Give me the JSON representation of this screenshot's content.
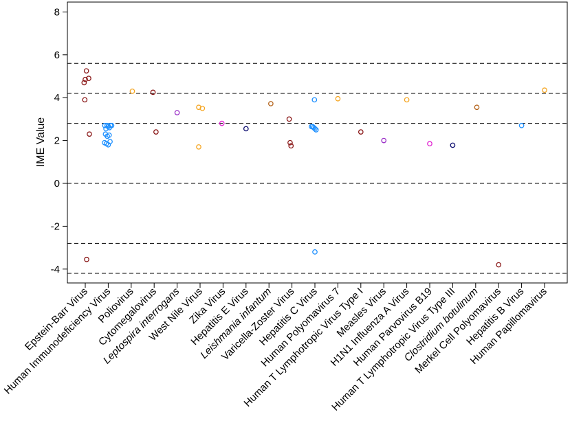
{
  "chart_data": {
    "type": "scatter",
    "ylabel": "IME Value",
    "xlabel": "",
    "ylim": [
      -4.7,
      8.5
    ],
    "yticks": [
      -4,
      -2,
      0,
      2,
      4,
      6,
      8
    ],
    "hlines": [
      5.6,
      4.2,
      2.8,
      0,
      -2.8,
      -4.2
    ],
    "categories": [
      {
        "label": "Epstein-Barr Virus",
        "italic": false
      },
      {
        "label": "Human Immunodeficiency Virus",
        "italic": false
      },
      {
        "label": "Poliovirus",
        "italic": false
      },
      {
        "label": "Cytomegalovirus",
        "italic": false
      },
      {
        "label": "Leptospira interrogans",
        "italic": true
      },
      {
        "label": "West Nile Virus",
        "italic": false
      },
      {
        "label": "Zika Virus",
        "italic": false
      },
      {
        "label": "Hepatitis E Virus",
        "italic": false
      },
      {
        "label": "Leishmania infantum",
        "italic": true
      },
      {
        "label": "Varicella-Zoster Virus",
        "italic": false
      },
      {
        "label": "Hepatitis C Virus",
        "italic": false
      },
      {
        "label": "Human Polyomavirus 7",
        "italic": false
      },
      {
        "label": "Human T Lymphotropic Virus Type I",
        "italic": false
      },
      {
        "label": "Measles Virus",
        "italic": false
      },
      {
        "label": "H1N1 Influenza A Virus",
        "italic": false
      },
      {
        "label": "Human Parvovirus B19",
        "italic": false
      },
      {
        "label": "Human T Lymphotropic Virus Type III",
        "italic": false
      },
      {
        "label": "Clostridium botulinum",
        "italic": true
      },
      {
        "label": "Merkel Cell Polyomavirus",
        "italic": false
      },
      {
        "label": "Hepatitis B Virus",
        "italic": false
      },
      {
        "label": "Human Papillomavirus",
        "italic": false
      }
    ],
    "points": [
      {
        "cat": 0,
        "dx": -0.05,
        "y": 4.7,
        "color": "#8b1a1a"
      },
      {
        "cat": 0,
        "dx": 0.05,
        "y": 5.25,
        "color": "#8b1a1a"
      },
      {
        "cat": 0,
        "dx": 0.0,
        "y": 4.85,
        "color": "#8b1a1a"
      },
      {
        "cat": 0,
        "dx": 0.15,
        "y": 4.9,
        "color": "#8b1a1a"
      },
      {
        "cat": 0,
        "dx": -0.02,
        "y": 3.9,
        "color": "#8b1a1a"
      },
      {
        "cat": 0,
        "dx": 0.18,
        "y": 2.3,
        "color": "#8b1a1a"
      },
      {
        "cat": 0,
        "dx": 0.06,
        "y": -3.55,
        "color": "#8b1a1a"
      },
      {
        "cat": 1,
        "dx": -0.15,
        "y": 2.7,
        "color": "#1e90ff"
      },
      {
        "cat": 1,
        "dx": -0.1,
        "y": 2.55,
        "color": "#1e90ff"
      },
      {
        "cat": 1,
        "dx": -0.05,
        "y": 2.7,
        "color": "#1e90ff"
      },
      {
        "cat": 1,
        "dx": 0.0,
        "y": 2.65,
        "color": "#1e90ff"
      },
      {
        "cat": 1,
        "dx": 0.05,
        "y": 2.6,
        "color": "#1e90ff"
      },
      {
        "cat": 1,
        "dx": 0.1,
        "y": 2.7,
        "color": "#1e90ff"
      },
      {
        "cat": 1,
        "dx": 0.15,
        "y": 2.7,
        "color": "#1e90ff"
      },
      {
        "cat": 1,
        "dx": -0.12,
        "y": 2.3,
        "color": "#1e90ff"
      },
      {
        "cat": 1,
        "dx": -0.04,
        "y": 2.2,
        "color": "#1e90ff"
      },
      {
        "cat": 1,
        "dx": 0.04,
        "y": 2.25,
        "color": "#1e90ff"
      },
      {
        "cat": 1,
        "dx": -0.16,
        "y": 1.9,
        "color": "#1e90ff"
      },
      {
        "cat": 1,
        "dx": -0.08,
        "y": 1.85,
        "color": "#1e90ff"
      },
      {
        "cat": 1,
        "dx": 0.0,
        "y": 1.8,
        "color": "#1e90ff"
      },
      {
        "cat": 1,
        "dx": 0.08,
        "y": 1.95,
        "color": "#1e90ff"
      },
      {
        "cat": 2,
        "dx": 0.05,
        "y": 4.3,
        "color": "#f5a623"
      },
      {
        "cat": 3,
        "dx": -0.05,
        "y": 4.25,
        "color": "#8b1a1a"
      },
      {
        "cat": 3,
        "dx": 0.08,
        "y": 2.4,
        "color": "#8b1a1a"
      },
      {
        "cat": 4,
        "dx": 0.0,
        "y": 3.3,
        "color": "#9b30c8"
      },
      {
        "cat": 5,
        "dx": -0.06,
        "y": 3.55,
        "color": "#f5a623"
      },
      {
        "cat": 5,
        "dx": 0.1,
        "y": 3.5,
        "color": "#f5a623"
      },
      {
        "cat": 5,
        "dx": -0.06,
        "y": 1.7,
        "color": "#f5a623"
      },
      {
        "cat": 6,
        "dx": -0.05,
        "y": 2.8,
        "color": "#e020d0"
      },
      {
        "cat": 7,
        "dx": 0.0,
        "y": 2.55,
        "color": "#0a0a6e"
      },
      {
        "cat": 8,
        "dx": 0.08,
        "y": 3.72,
        "color": "#b5651d"
      },
      {
        "cat": 9,
        "dx": -0.12,
        "y": 3.0,
        "color": "#8b1a1a"
      },
      {
        "cat": 9,
        "dx": -0.08,
        "y": 1.9,
        "color": "#8b1a1a"
      },
      {
        "cat": 9,
        "dx": -0.04,
        "y": 1.75,
        "color": "#8b1a1a"
      },
      {
        "cat": 10,
        "dx": -0.15,
        "y": 2.65,
        "color": "#1e90ff"
      },
      {
        "cat": 10,
        "dx": -0.1,
        "y": 2.65,
        "color": "#1e90ff"
      },
      {
        "cat": 10,
        "dx": -0.05,
        "y": 2.6,
        "color": "#1e90ff"
      },
      {
        "cat": 10,
        "dx": 0.0,
        "y": 2.55,
        "color": "#1e90ff"
      },
      {
        "cat": 10,
        "dx": 0.05,
        "y": 2.5,
        "color": "#1e90ff"
      },
      {
        "cat": 10,
        "dx": -0.02,
        "y": 3.9,
        "color": "#1e90ff"
      },
      {
        "cat": 10,
        "dx": 0.0,
        "y": -3.2,
        "color": "#1e90ff"
      },
      {
        "cat": 11,
        "dx": 0.0,
        "y": 3.95,
        "color": "#f5a623"
      },
      {
        "cat": 12,
        "dx": 0.0,
        "y": 2.4,
        "color": "#8b1a1a"
      },
      {
        "cat": 13,
        "dx": 0.0,
        "y": 2.0,
        "color": "#9b30c8"
      },
      {
        "cat": 14,
        "dx": 0.0,
        "y": 3.9,
        "color": "#f5a623"
      },
      {
        "cat": 15,
        "dx": 0.0,
        "y": 1.85,
        "color": "#e020d0"
      },
      {
        "cat": 16,
        "dx": 0.0,
        "y": 1.78,
        "color": "#0a0a6e"
      },
      {
        "cat": 17,
        "dx": 0.05,
        "y": 3.55,
        "color": "#b5651d"
      },
      {
        "cat": 18,
        "dx": 0.0,
        "y": -3.8,
        "color": "#8b1a1a"
      },
      {
        "cat": 19,
        "dx": 0.0,
        "y": 2.7,
        "color": "#1e90ff"
      },
      {
        "cat": 20,
        "dx": 0.0,
        "y": 4.35,
        "color": "#f5a623"
      }
    ]
  }
}
